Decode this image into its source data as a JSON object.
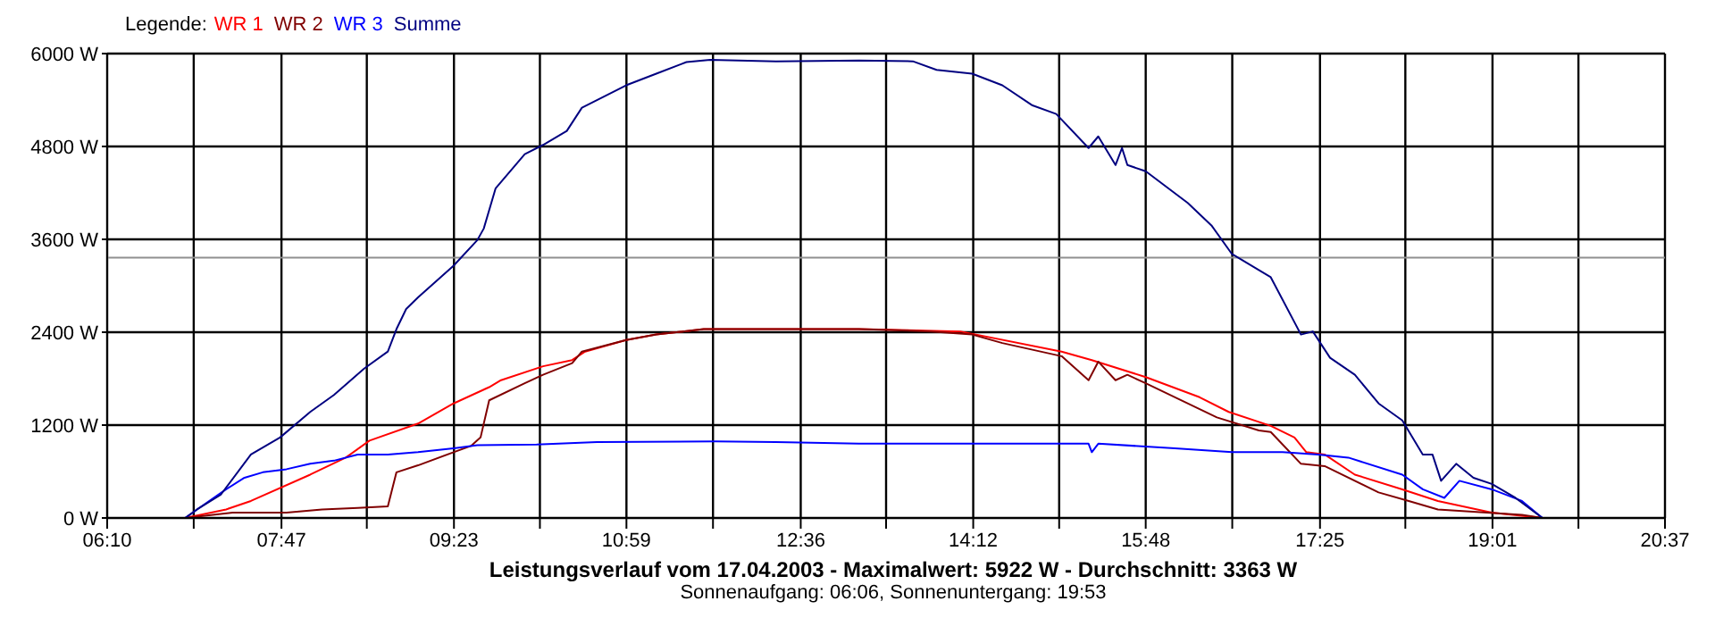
{
  "chart_data": {
    "type": "line",
    "title": "Leistungsverlauf vom 17.04.2003 - Maximalwert: 5922 W - Durchschnitt: 3363 W",
    "subtitle": "Sonnenaufgang: 06:06, Sonnenuntergang: 19:53",
    "legend_title": "Legende:",
    "legend": "top left",
    "grid": true,
    "marker": "none",
    "line_style": "solid",
    "xlim": [
      6.1667,
      20.6167
    ],
    "xticks": [
      {
        "value": 6.1667,
        "label": "06:10"
      },
      {
        "value": 6.9694,
        "label": null
      },
      {
        "value": 7.7833,
        "label": "07:47"
      },
      {
        "value": 8.575,
        "label": null
      },
      {
        "value": 9.3833,
        "label": "09:23"
      },
      {
        "value": 10.1806,
        "label": null
      },
      {
        "value": 10.9833,
        "label": "10:59"
      },
      {
        "value": 11.7861,
        "label": null
      },
      {
        "value": 12.6,
        "label": "12:36"
      },
      {
        "value": 13.3917,
        "label": null
      },
      {
        "value": 14.2,
        "label": "14:12"
      },
      {
        "value": 14.9972,
        "label": null
      },
      {
        "value": 15.8,
        "label": "15:48"
      },
      {
        "value": 16.6028,
        "label": null
      },
      {
        "value": 17.4167,
        "label": "17:25"
      },
      {
        "value": 18.2083,
        "label": null
      },
      {
        "value": 19.0167,
        "label": "19:01"
      },
      {
        "value": 19.8139,
        "label": null
      },
      {
        "value": 20.6167,
        "label": "20:37"
      }
    ],
    "ylim": [
      0,
      6000
    ],
    "yticks": [
      {
        "value": 0,
        "label": "0 W"
      },
      {
        "value": 1200,
        "label": "1200 W"
      },
      {
        "value": 2400,
        "label": "2400 W"
      },
      {
        "value": 3600,
        "label": "3600 W"
      },
      {
        "value": 4800,
        "label": "4800 W"
      },
      {
        "value": 6000,
        "label": "6000 W"
      }
    ],
    "ref_lines": [
      {
        "axis": "y",
        "value": 3363,
        "color": "#909090"
      }
    ],
    "series": [
      {
        "name": "WR 1",
        "color": "#ff0000",
        "x": [
          6.89,
          7.27,
          7.5,
          8.05,
          8.38,
          8.6,
          9.05,
          9.38,
          9.71,
          9.82,
          10.21,
          10.48,
          10.6,
          10.98,
          11.26,
          11.7,
          13.14,
          14.08,
          15.02,
          15.3,
          15.8,
          16.3,
          16.57,
          16.96,
          17.18,
          17.29,
          17.46,
          17.74,
          18.18,
          18.51,
          19.01,
          19.48
        ],
        "values": [
          0,
          110,
          220,
          560,
          780,
          1000,
          1220,
          1480,
          1690,
          1780,
          1960,
          2040,
          2150,
          2300,
          2370,
          2440,
          2440,
          2410,
          2150,
          2040,
          1820,
          1560,
          1370,
          1190,
          1040,
          850,
          820,
          560,
          370,
          220,
          70,
          0
        ]
      },
      {
        "name": "WR 2",
        "color": "#800000",
        "x": [
          6.89,
          7.33,
          7.83,
          8.16,
          8.49,
          8.77,
          8.85,
          9.05,
          9.38,
          9.54,
          9.63,
          9.71,
          10.04,
          10.21,
          10.48,
          10.57,
          10.98,
          11.26,
          11.7,
          13.14,
          13.81,
          14.19,
          14.47,
          15.02,
          15.27,
          15.36,
          15.52,
          15.63,
          15.8,
          16.46,
          16.85,
          16.96,
          17.24,
          17.46,
          17.96,
          18.24,
          18.51,
          19.29,
          19.48
        ],
        "values": [
          0,
          70,
          70,
          110,
          130,
          150,
          590,
          680,
          850,
          930,
          1040,
          1520,
          1740,
          1850,
          2000,
          2150,
          2300,
          2370,
          2440,
          2440,
          2410,
          2370,
          2260,
          2090,
          1780,
          2020,
          1780,
          1850,
          1740,
          1300,
          1130,
          1110,
          700,
          670,
          330,
          220,
          110,
          40,
          0
        ]
      },
      {
        "name": "WR 3",
        "color": "#0000ff",
        "x": [
          6.89,
          7.0,
          7.27,
          7.44,
          7.61,
          7.83,
          8.05,
          8.27,
          8.49,
          8.77,
          9.05,
          9.38,
          9.6,
          10.15,
          10.71,
          11.81,
          12.37,
          13.14,
          15.27,
          15.3,
          15.36,
          16.07,
          16.6,
          17.07,
          17.4,
          17.68,
          18.18,
          18.37,
          18.57,
          18.71,
          19.01,
          19.29,
          19.48
        ],
        "values": [
          0,
          110,
          370,
          520,
          590,
          630,
          700,
          740,
          820,
          820,
          850,
          900,
          940,
          950,
          980,
          990,
          980,
          960,
          960,
          850,
          960,
          900,
          850,
          850,
          820,
          780,
          560,
          370,
          260,
          480,
          370,
          220,
          0
        ]
      },
      {
        "name": "Summe",
        "color": "#000080",
        "x": [
          6.89,
          7.0,
          7.22,
          7.5,
          7.77,
          8.05,
          8.27,
          8.55,
          8.77,
          8.85,
          8.94,
          9.05,
          9.38,
          9.6,
          9.66,
          9.77,
          10.04,
          10.21,
          10.43,
          10.57,
          10.98,
          11.26,
          11.54,
          11.76,
          12.37,
          13.14,
          13.64,
          13.86,
          14.19,
          14.47,
          14.75,
          14.97,
          15.27,
          15.36,
          15.52,
          15.58,
          15.63,
          15.8,
          16.19,
          16.41,
          16.6,
          16.96,
          17.24,
          17.35,
          17.51,
          17.74,
          17.96,
          18.18,
          18.37,
          18.46,
          18.54,
          18.68,
          18.84,
          19.01,
          19.23,
          19.48
        ],
        "values": [
          0,
          110,
          300,
          820,
          1040,
          1370,
          1590,
          1930,
          2150,
          2440,
          2700,
          2850,
          3260,
          3590,
          3740,
          4260,
          4700,
          4820,
          5000,
          5300,
          5590,
          5740,
          5890,
          5920,
          5900,
          5910,
          5900,
          5790,
          5740,
          5590,
          5330,
          5220,
          4780,
          4930,
          4560,
          4780,
          4560,
          4480,
          4070,
          3780,
          3410,
          3110,
          2370,
          2410,
          2070,
          1850,
          1480,
          1260,
          820,
          820,
          480,
          700,
          520,
          440,
          260,
          0
        ]
      }
    ]
  }
}
